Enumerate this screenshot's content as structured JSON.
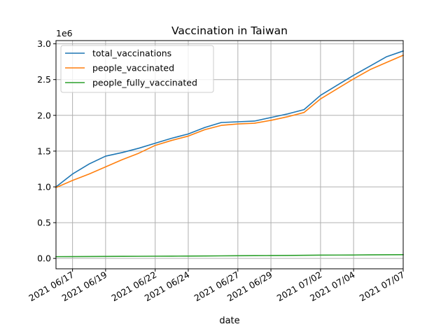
{
  "chart_data": {
    "type": "line",
    "title": "Vaccination in Taiwan",
    "xlabel": "date",
    "ylabel": "",
    "y_multiplier_label": "1e6",
    "ylim": [
      -0.145,
      3.045
    ],
    "yticks": [
      0.0,
      0.5,
      1.0,
      1.5,
      2.0,
      2.5,
      3.0
    ],
    "ytick_labels": [
      "0.0",
      "0.5",
      "1.0",
      "1.5",
      "2.0",
      "2.5",
      "3.0"
    ],
    "x": [
      "2021 06/16",
      "2021 06/17",
      "2021 06/18",
      "2021 06/19",
      "2021 06/20",
      "2021 06/21",
      "2021 06/22",
      "2021 06/23",
      "2021 06/24",
      "2021 06/25",
      "2021 06/26",
      "2021 06/27",
      "2021 06/28",
      "2021 06/29",
      "2021 06/30",
      "2021 07/01",
      "2021 07/02",
      "2021 07/03",
      "2021 07/04",
      "2021 07/05",
      "2021 07/06",
      "2021 07/07"
    ],
    "xtick_labels": [
      "2021 06/17",
      "2021 06/19",
      "2021 06/22",
      "2021 06/24",
      "2021 06/27",
      "2021 06/29",
      "2021 07/02",
      "2021 07/04",
      "2021 07/07"
    ],
    "grid": true,
    "legend_position": "top-left",
    "series": [
      {
        "name": "total_vaccinations",
        "color": "#1f77b4",
        "values": [
          1.0,
          1.18,
          1.32,
          1.43,
          1.48,
          1.54,
          1.61,
          1.68,
          1.74,
          1.83,
          1.9,
          1.91,
          1.92,
          1.97,
          2.02,
          2.08,
          2.28,
          2.42,
          2.56,
          2.69,
          2.82,
          2.9
        ]
      },
      {
        "name": "people_vaccinated",
        "color": "#ff7f0e",
        "values": [
          0.99,
          1.09,
          1.18,
          1.28,
          1.38,
          1.47,
          1.58,
          1.65,
          1.71,
          1.8,
          1.86,
          1.88,
          1.89,
          1.93,
          1.98,
          2.04,
          2.23,
          2.37,
          2.51,
          2.64,
          2.74,
          2.84
        ]
      },
      {
        "name": "people_fully_vaccinated",
        "color": "#2ca02c",
        "values": [
          0.025,
          0.026,
          0.027,
          0.028,
          0.029,
          0.03,
          0.031,
          0.032,
          0.033,
          0.034,
          0.036,
          0.038,
          0.039,
          0.04,
          0.042,
          0.044,
          0.046,
          0.047,
          0.048,
          0.05,
          0.051,
          0.053
        ]
      }
    ]
  }
}
